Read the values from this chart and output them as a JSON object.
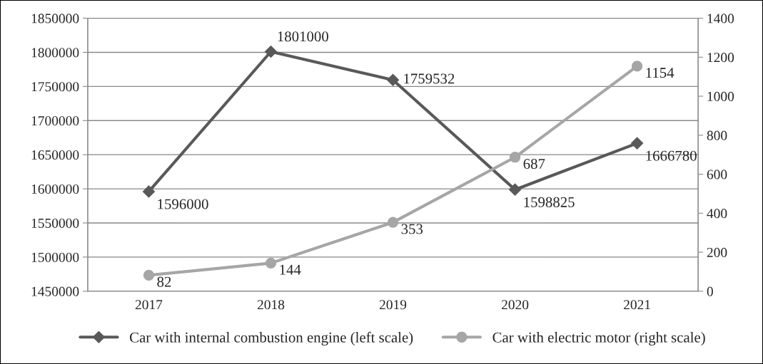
{
  "chart_data": {
    "type": "line",
    "categories": [
      "2017",
      "2018",
      "2019",
      "2020",
      "2021"
    ],
    "series": [
      {
        "name": "Car with internal combustion engine (left scale)",
        "color": "#595959",
        "marker": "diamond",
        "values": [
          1596000,
          1801000,
          1759532,
          1598825,
          1666780
        ]
      },
      {
        "name": "Car with electric motor (right scale)",
        "color": "#a6a6a6",
        "marker": "circle",
        "axis": "y2",
        "values": [
          82,
          144,
          353,
          687,
          1154
        ]
      }
    ],
    "ylim": [
      1450000,
      1850000
    ],
    "yticks": [
      1450000,
      1500000,
      1550000,
      1600000,
      1650000,
      1700000,
      1750000,
      1800000,
      1850000
    ],
    "y2lim": [
      0,
      1400
    ],
    "y2ticks": [
      0,
      200,
      400,
      600,
      800,
      1000,
      1200,
      1400
    ],
    "grid": "y",
    "legend": "bottom",
    "data_labels": true,
    "line_style": "solid"
  }
}
